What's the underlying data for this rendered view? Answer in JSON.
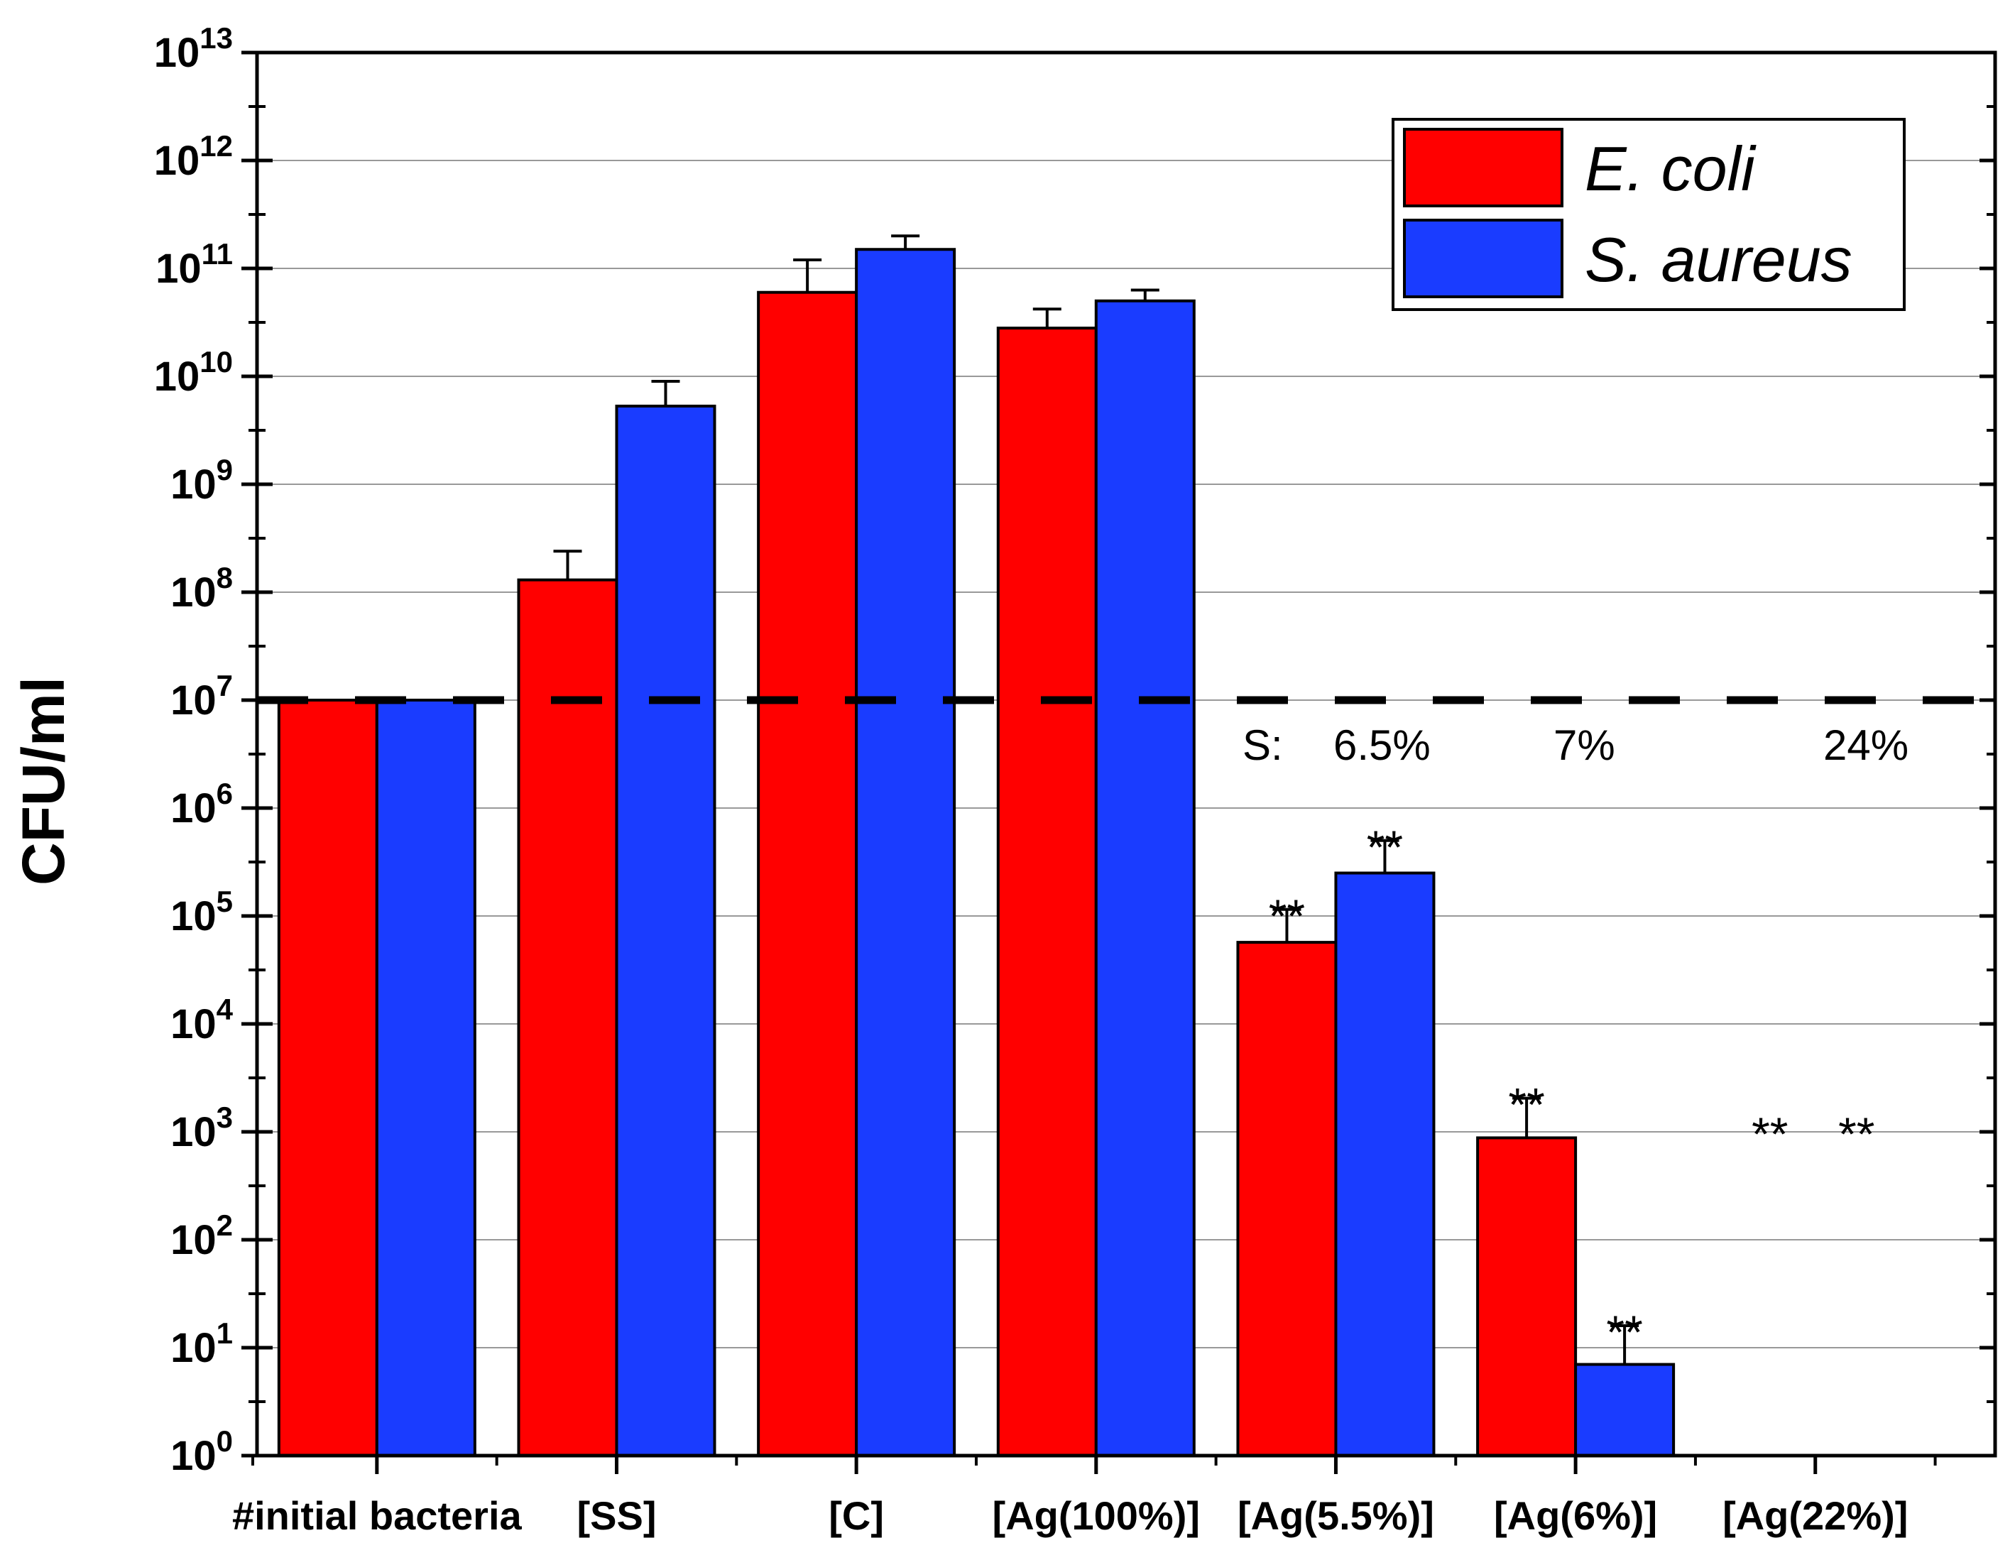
{
  "chart_data": {
    "type": "bar",
    "title": "",
    "xlabel": "",
    "ylabel": "CFU/ml",
    "yscale": "log",
    "ylim_exponents": [
      0,
      13
    ],
    "ytick_base": "10",
    "ytick_exponents": [
      "0",
      "1",
      "2",
      "3",
      "4",
      "5",
      "6",
      "7",
      "8",
      "9",
      "10",
      "11",
      "12",
      "13"
    ],
    "grid": true,
    "categories": [
      "#initial bacteria",
      "[SS]",
      "[C]",
      "[Ag(100%)]",
      "[Ag(5.5%)]",
      "[Ag(6%)]",
      "[Ag(22%)]"
    ],
    "series": [
      {
        "name": "E. coli",
        "color": "#ff0000",
        "values": [
          10000000,
          130000000,
          60000000000,
          28000000000,
          57000,
          880,
          null
        ],
        "error_upper": [
          null,
          240000000,
          120000000000,
          42000000000,
          115000,
          2050,
          null
        ],
        "significance": [
          "",
          "",
          "",
          "",
          "**",
          "**",
          "**"
        ]
      },
      {
        "name": "S. aureus",
        "color": "#1a3cff",
        "values": [
          10000000,
          5300000000,
          150000000000,
          50000000000,
          250000,
          7,
          null
        ],
        "error_upper": [
          null,
          9000000000,
          200000000000,
          63000000000,
          500000,
          16,
          null
        ],
        "significance": [
          "",
          "",
          "",
          "",
          "**",
          "**",
          "**"
        ]
      }
    ],
    "reference_line": {
      "value": 10000000,
      "style": "dashed"
    },
    "legend": {
      "position": "top-right",
      "entries": [
        "E. coli",
        "S. aureus"
      ]
    },
    "annotations": {
      "s_prefix": "S:",
      "s_values": [
        "6.5%",
        "7%",
        "24%"
      ]
    }
  }
}
